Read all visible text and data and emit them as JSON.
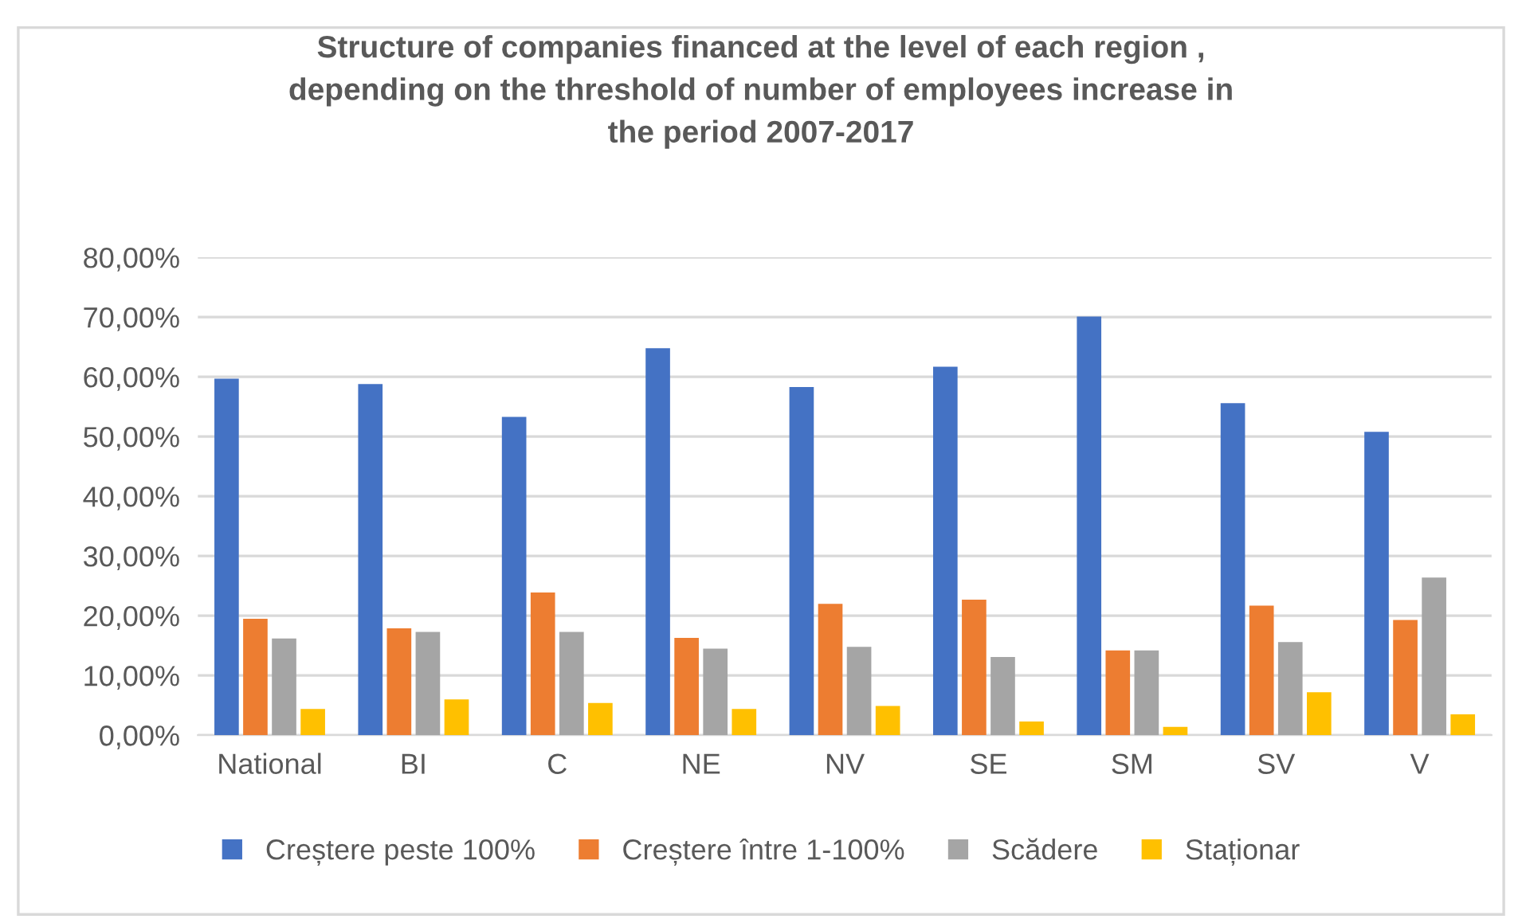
{
  "chart_data": {
    "type": "bar",
    "title": "Structure of companies financed at the level of each region ,\ndepending on the threshold of number of employees increase in\nthe period 2007-2017",
    "categories": [
      "National",
      "BI",
      "C",
      "NE",
      "NV",
      "SE",
      "SM",
      "SV",
      "V"
    ],
    "series": [
      {
        "name": "Creștere peste 100%",
        "color": "#4472c4",
        "values": [
          59.7,
          58.8,
          53.3,
          64.8,
          58.3,
          61.7,
          70.1,
          55.6,
          50.8
        ]
      },
      {
        "name": "Creștere între 1-100%",
        "color": "#ed7d31",
        "values": [
          19.5,
          17.9,
          23.9,
          16.3,
          22.0,
          22.7,
          14.2,
          21.7,
          19.3
        ]
      },
      {
        "name": "Scădere",
        "color": "#a5a5a5",
        "values": [
          16.2,
          17.3,
          17.3,
          14.5,
          14.8,
          13.1,
          14.2,
          15.6,
          26.4
        ]
      },
      {
        "name": "Staționar",
        "color": "#ffc000",
        "values": [
          4.4,
          6.0,
          5.4,
          4.4,
          4.9,
          2.3,
          1.4,
          7.2,
          3.5
        ]
      }
    ],
    "ylim": [
      0,
      80
    ],
    "yticks": [
      {
        "value": 0,
        "label": "0,00%"
      },
      {
        "value": 10,
        "label": "10,00%"
      },
      {
        "value": 20,
        "label": "20,00%"
      },
      {
        "value": 30,
        "label": "30,00%"
      },
      {
        "value": 40,
        "label": "40,00%"
      },
      {
        "value": 50,
        "label": "50,00%"
      },
      {
        "value": 60,
        "label": "60,00%"
      },
      {
        "value": 70,
        "label": "70,00%"
      },
      {
        "value": 80,
        "label": "80,00%"
      }
    ],
    "grid": "y",
    "legend": "bottom"
  }
}
